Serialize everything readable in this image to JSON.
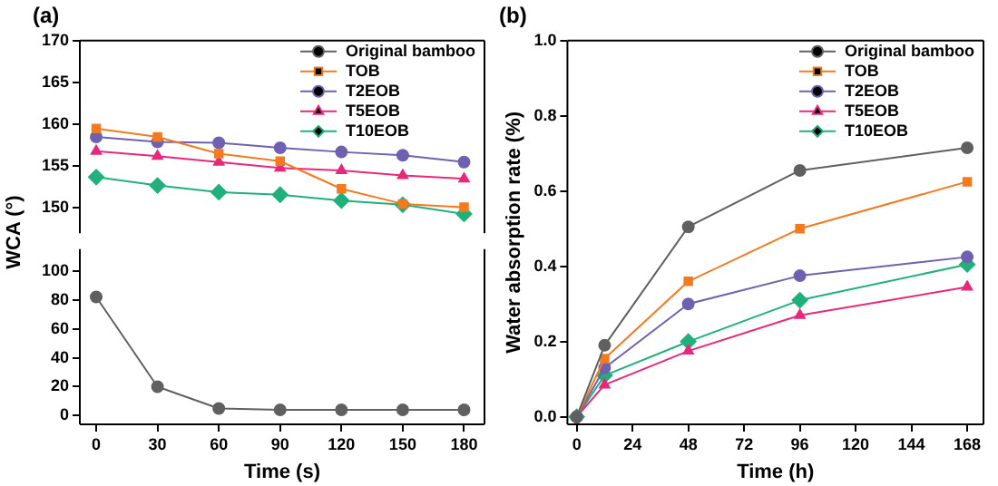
{
  "chart_data": [
    {
      "type": "line",
      "title": "(a)",
      "ylabel": "WCA (°)",
      "x": [
        0,
        30,
        60,
        90,
        120,
        150,
        180
      ],
      "xlim": [
        -8,
        190
      ],
      "ylim": [
        147,
        170
      ],
      "yticks": [
        150,
        155,
        160,
        165,
        170
      ],
      "tick_labels": "y",
      "grid": false,
      "legend": "top right",
      "series": [
        {
          "name": "Original bamboo",
          "color": "#606060",
          "marker": "circle",
          "values": [
            null,
            null,
            null,
            null,
            null,
            null,
            null
          ]
        },
        {
          "name": "TOB",
          "color": "#f47a20",
          "marker": "square",
          "values": [
            159.5,
            158.5,
            156.5,
            155.6,
            152.3,
            150.5,
            150.1
          ]
        },
        {
          "name": "T2EOB",
          "color": "#7060b0",
          "marker": "circle",
          "values": [
            158.5,
            157.9,
            157.8,
            157.2,
            156.7,
            156.3,
            155.5
          ]
        },
        {
          "name": "T5EOB",
          "color": "#e8287a",
          "marker": "triangle",
          "values": [
            156.8,
            156.2,
            155.5,
            154.8,
            154.5,
            153.9,
            153.5
          ]
        },
        {
          "name": "T10EOB",
          "color": "#20b07c",
          "marker": "diamond",
          "values": [
            153.7,
            152.7,
            151.9,
            151.6,
            150.9,
            150.4,
            149.3
          ]
        }
      ]
    },
    {
      "type": "line",
      "xlabel": "Time (s)",
      "x": [
        0,
        30,
        60,
        90,
        120,
        150,
        180
      ],
      "xlim": [
        -8,
        190
      ],
      "xticks": [
        0,
        30,
        60,
        90,
        120,
        150,
        180
      ],
      "ylim": [
        -6,
        115
      ],
      "yticks": [
        0,
        20,
        40,
        60,
        80,
        100
      ],
      "grid": false,
      "series": [
        {
          "color": "#606060",
          "marker": "circle",
          "values": [
            82,
            20,
            5,
            4,
            4,
            4,
            4
          ]
        }
      ]
    },
    {
      "type": "line",
      "title": "(b)",
      "xlabel": "Time (h)",
      "ylabel": "Water absorption rate (%)",
      "x": [
        0,
        12,
        48,
        96,
        168
      ],
      "xlim": [
        -4,
        175
      ],
      "xticks": [
        0,
        24,
        48,
        72,
        96,
        120,
        144,
        168
      ],
      "ylim": [
        -0.02,
        1.0
      ],
      "yticks": [
        {
          "value": 0,
          "label": "0.0"
        },
        0.2,
        0.4,
        0.6,
        0.8,
        {
          "value": 1,
          "label": "1.0"
        }
      ],
      "grid": false,
      "legend": "top right",
      "series": [
        {
          "name": "Original bamboo",
          "color": "#606060",
          "marker": "circle",
          "values": [
            0,
            0.19,
            0.505,
            0.655,
            0.715
          ]
        },
        {
          "name": "TOB",
          "color": "#f47a20",
          "marker": "square",
          "values": [
            0,
            0.155,
            0.36,
            0.5,
            0.625
          ]
        },
        {
          "name": "T2EOB",
          "color": "#7060b0",
          "marker": "circle",
          "values": [
            0,
            0.13,
            0.3,
            0.375,
            0.425
          ]
        },
        {
          "name": "T5EOB",
          "color": "#e8287a",
          "marker": "triangle",
          "values": [
            0,
            0.085,
            0.175,
            0.27,
            0.345
          ]
        },
        {
          "name": "T10EOB",
          "color": "#20b07c",
          "marker": "diamond",
          "values": [
            0,
            0.11,
            0.2,
            0.31,
            0.405
          ]
        }
      ]
    }
  ]
}
